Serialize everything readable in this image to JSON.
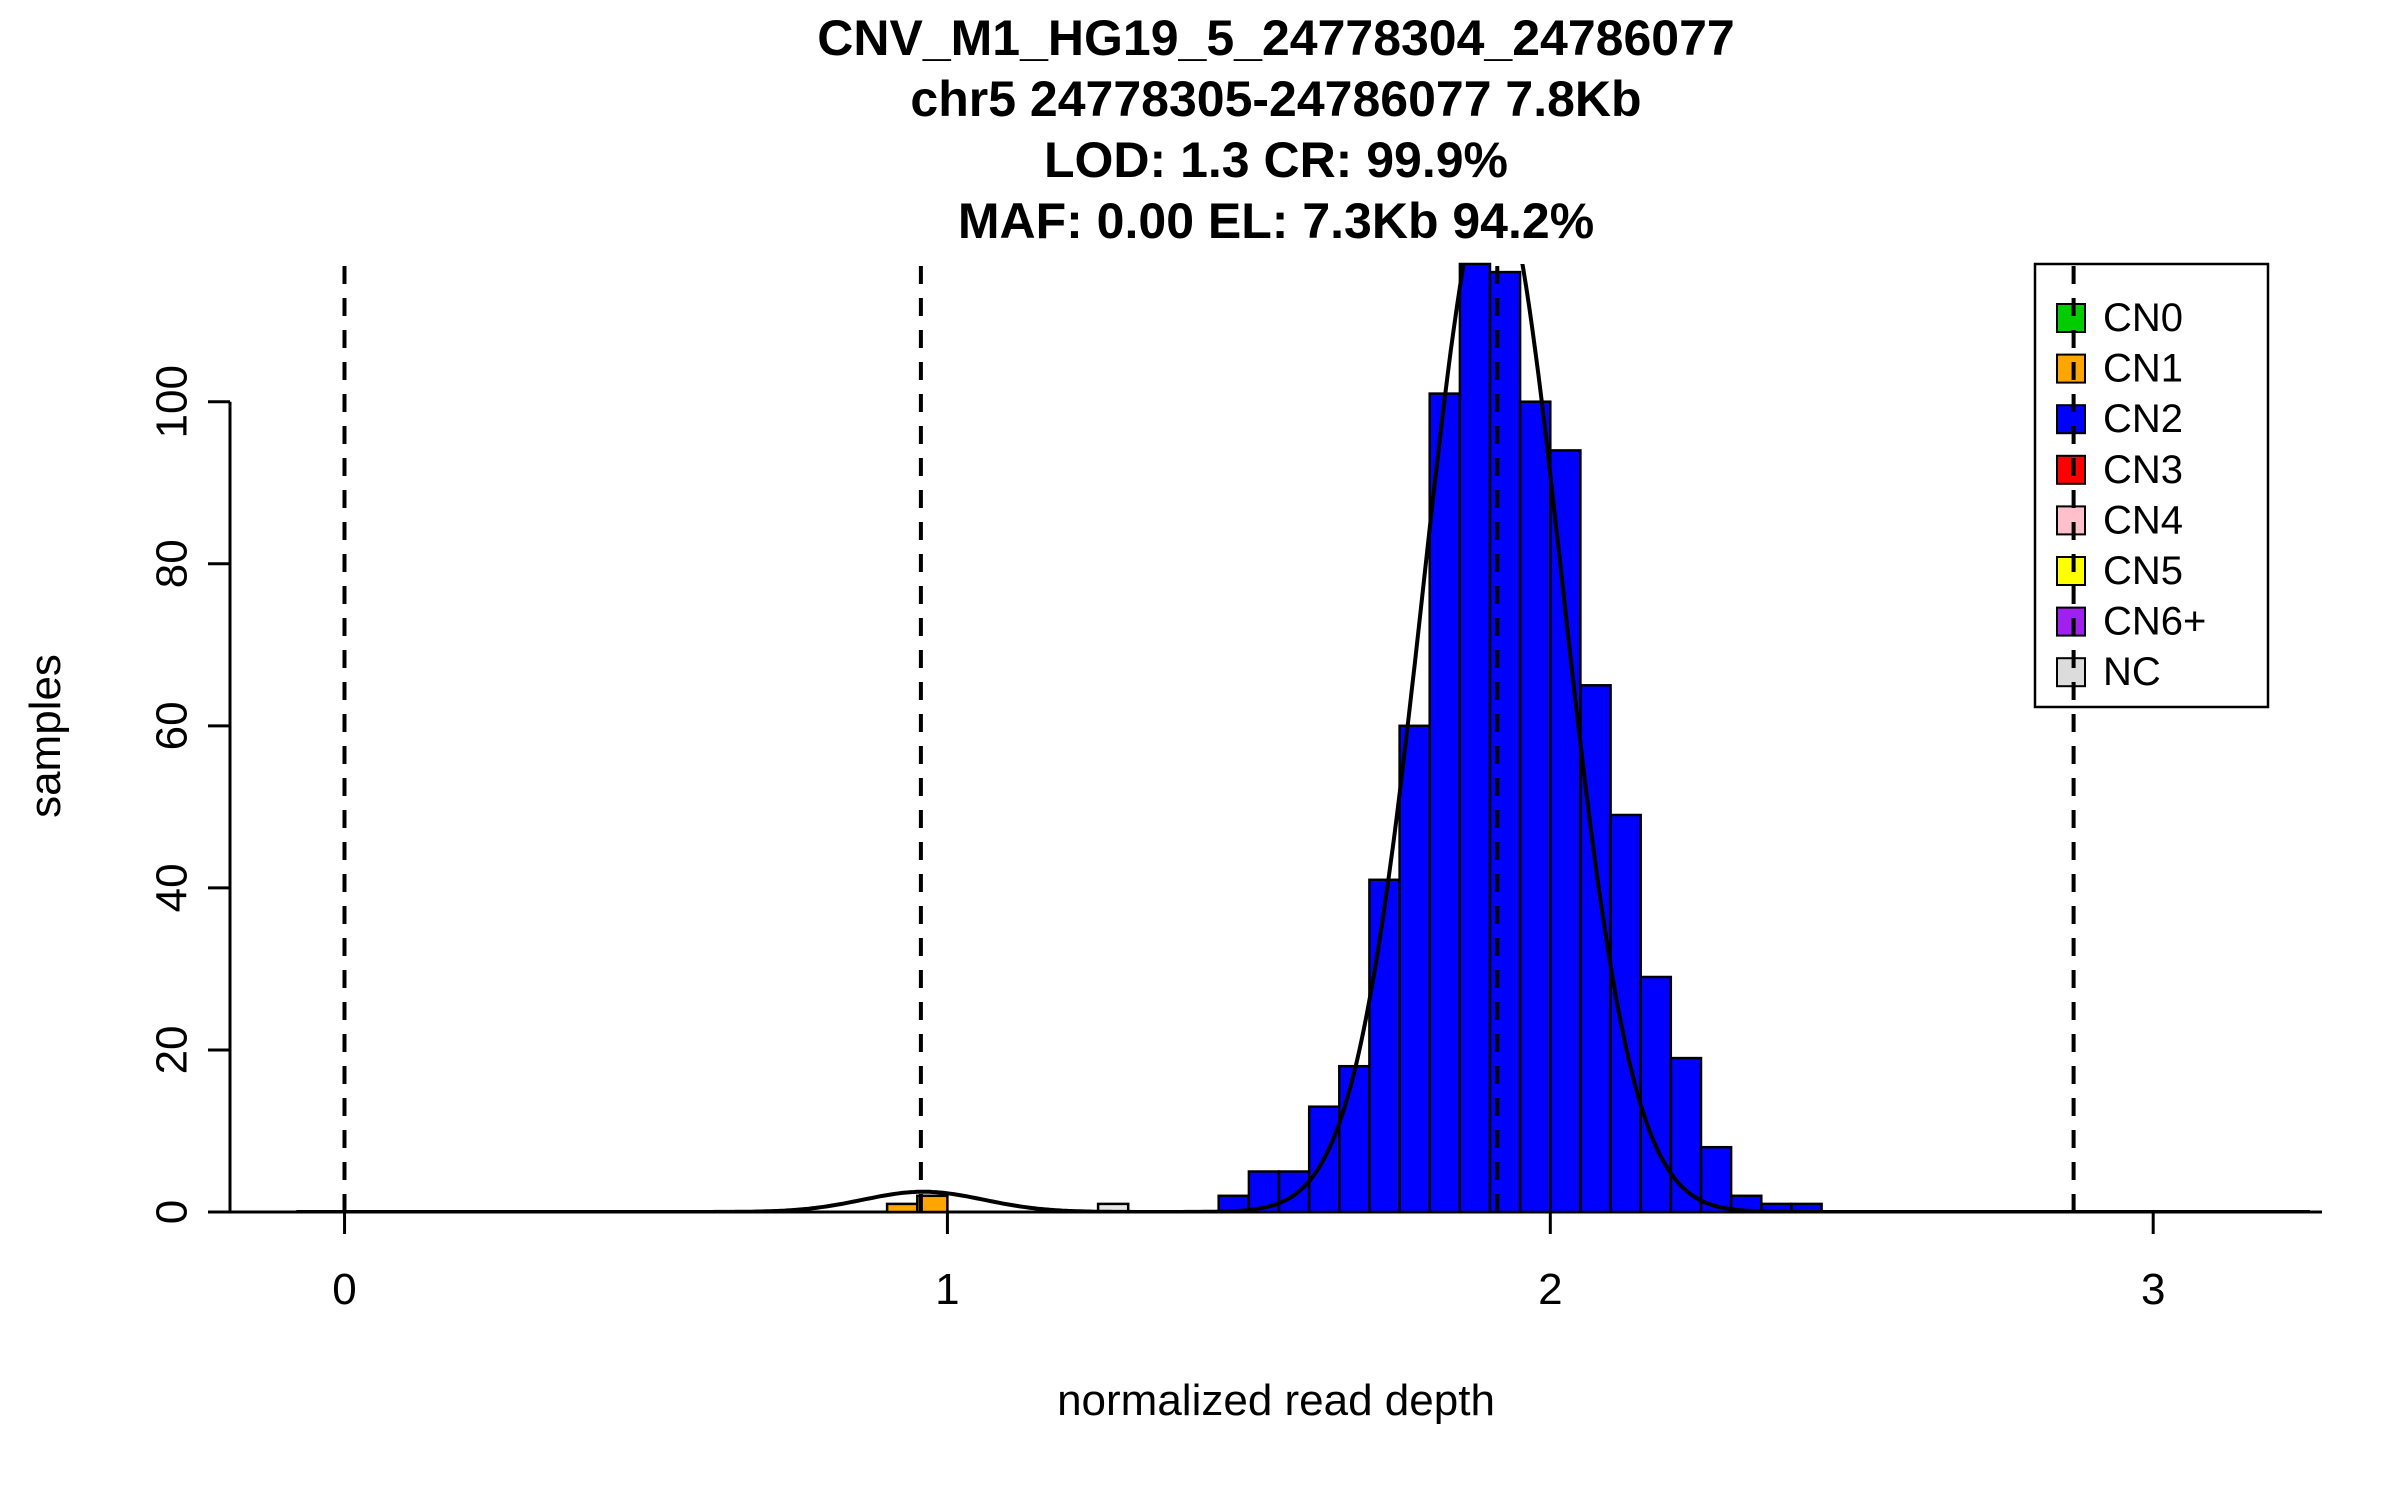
{
  "chart_data": {
    "type": "bar",
    "title_lines": [
      "CNV_M1_HG19_5_24778304_24786077",
      "chr5 24778305-24786077 7.8Kb",
      "LOD: 1.3 CR: 99.9%",
      "MAF: 0.00 EL: 7.3Kb 94.2%"
    ],
    "xlabel": "normalized read depth",
    "ylabel": "samples",
    "xlim": [
      -0.19,
      3.28
    ],
    "ylim": [
      0,
      117
    ],
    "x_ticks": [
      0,
      1,
      2,
      3
    ],
    "y_ticks": [
      0,
      20,
      40,
      60,
      80,
      100
    ],
    "grid": false,
    "bin_width": 0.05,
    "series": [
      {
        "name": "CN2",
        "color": "#0000FF",
        "bars": [
          [
            1.45,
            2
          ],
          [
            1.5,
            5
          ],
          [
            1.55,
            5
          ],
          [
            1.6,
            13
          ],
          [
            1.65,
            18
          ],
          [
            1.7,
            41
          ],
          [
            1.75,
            60
          ],
          [
            1.8,
            101
          ],
          [
            1.85,
            117
          ],
          [
            1.9,
            116
          ],
          [
            1.95,
            100
          ],
          [
            2.0,
            94
          ],
          [
            2.05,
            65
          ],
          [
            2.1,
            49
          ],
          [
            2.15,
            29
          ],
          [
            2.2,
            19
          ],
          [
            2.25,
            8
          ],
          [
            2.3,
            2
          ],
          [
            2.35,
            1
          ],
          [
            2.4,
            1
          ]
        ]
      },
      {
        "name": "CN1",
        "color": "#FFA500",
        "bars": [
          [
            0.9,
            1
          ],
          [
            0.95,
            2
          ]
        ]
      },
      {
        "name": "NC",
        "color": "#E8E8E8",
        "bars": [
          [
            1.25,
            1
          ]
        ]
      }
    ],
    "fit_curve": {
      "color": "#000000",
      "components": [
        {
          "mu": 1.905,
          "sd": 0.115,
          "amp": 128
        },
        {
          "mu": 0.96,
          "sd": 0.1,
          "amp": 2.5
        }
      ]
    },
    "cn_boundaries_x": [
      0,
      0.956,
      1.912,
      2.868
    ],
    "legend": {
      "position": "top-right",
      "items": [
        {
          "label": "CN0",
          "color": "#00CC00"
        },
        {
          "label": "CN1",
          "color": "#FFA500"
        },
        {
          "label": "CN2",
          "color": "#0000FF"
        },
        {
          "label": "CN3",
          "color": "#FF0000"
        },
        {
          "label": "CN4",
          "color": "#FFC0CB"
        },
        {
          "label": "CN5",
          "color": "#FFFF00"
        },
        {
          "label": "CN6+",
          "color": "#A020F0"
        },
        {
          "label": "NC",
          "color": "#DCDCDC"
        }
      ]
    }
  }
}
